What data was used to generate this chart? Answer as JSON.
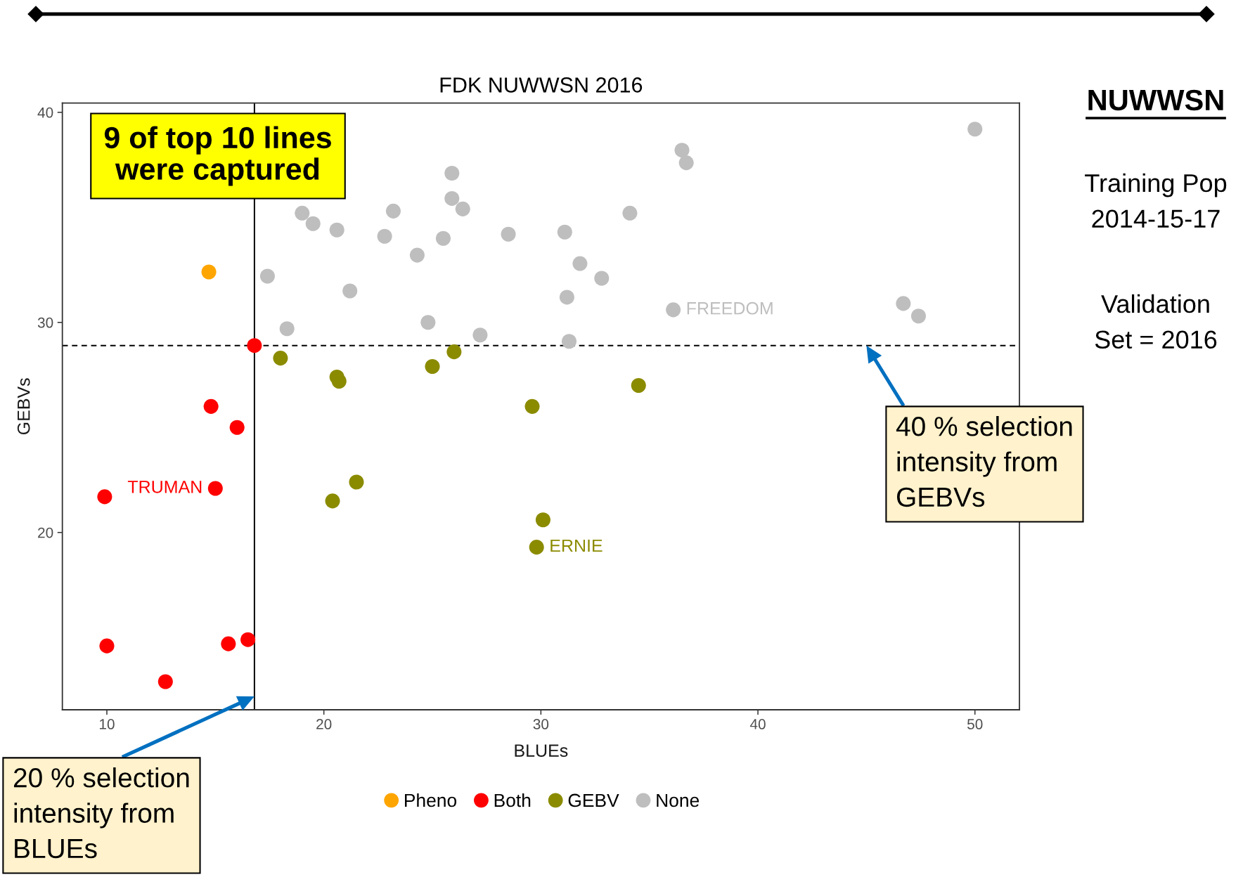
{
  "chart_data": {
    "type": "scatter",
    "title": "FDK NUWWSN 2016",
    "xlabel": "BLUEs",
    "ylabel": "GEBVs",
    "xlim": [
      7.95,
      52.05
    ],
    "ylim": [
      11.56,
      40.44
    ],
    "xticks": [
      10,
      20,
      30,
      40,
      50
    ],
    "yticks": [
      20,
      30,
      40
    ],
    "legend": "bottom",
    "marker": "circle",
    "series": [
      {
        "name": "Pheno",
        "color": "#ffa500",
        "x": [
          14.7
        ],
        "values": [
          32.4
        ]
      },
      {
        "name": "Both",
        "color": "#ff0000",
        "x": [
          16.8,
          14.8,
          16.0,
          15.0,
          9.9,
          10.0,
          15.6,
          16.5,
          12.7
        ],
        "values": [
          28.9,
          26.0,
          25.0,
          22.1,
          21.7,
          14.6,
          14.7,
          14.9,
          12.9
        ]
      },
      {
        "name": "GEBV",
        "color": "#8b8b00",
        "x": [
          18.0,
          20.6,
          20.7,
          25.0,
          26.0,
          34.5,
          29.6,
          21.5,
          20.4,
          30.1,
          29.8
        ],
        "values": [
          28.3,
          27.4,
          27.2,
          27.9,
          28.6,
          27.0,
          26.0,
          22.4,
          21.5,
          20.6,
          19.3
        ]
      },
      {
        "name": "None",
        "color": "#bebebe",
        "x": [
          17.4,
          18.3,
          21.2,
          19.5,
          20.6,
          19.0,
          23.2,
          22.8,
          24.3,
          25.5,
          25.9,
          25.9,
          26.4,
          24.8,
          27.2,
          28.5,
          31.1,
          36.5,
          36.7,
          34.1,
          31.8,
          32.8,
          31.2,
          36.1,
          31.3,
          46.7,
          47.4,
          50.0
        ],
        "values": [
          32.2,
          29.7,
          31.5,
          34.7,
          34.4,
          35.2,
          35.3,
          34.1,
          33.2,
          34.0,
          37.1,
          35.9,
          35.4,
          30.0,
          29.4,
          34.2,
          34.3,
          38.2,
          37.6,
          35.2,
          32.8,
          32.1,
          31.2,
          30.6,
          29.1,
          30.9,
          30.3,
          39.2
        ]
      }
    ],
    "ref_lines": [
      {
        "axis": "x",
        "value": 16.8,
        "color": "#000000",
        "line_style": "solid"
      },
      {
        "axis": "y",
        "value": 28.9,
        "color": "#000000",
        "line_style": "dashed"
      }
    ],
    "annotations": [
      {
        "text": "FREEDOM",
        "x": 36.1,
        "y": 30.6
      },
      {
        "text": "TRUMAN",
        "x": 15.0,
        "y": 22.1
      },
      {
        "text": "ERNIE",
        "x": 29.8,
        "y": 19.3
      },
      "9 of top 10 lines\nwere captured",
      {
        "text": "40 % selection\nintensity from\nGEBVs",
        "x": 45.0,
        "y": 28.9
      },
      "20 % selection\nintensity from\nBLUEs",
      "NUWWSN",
      "Training Pop\n2014-15-17",
      "Validation\nSet = 2016"
    ]
  }
}
